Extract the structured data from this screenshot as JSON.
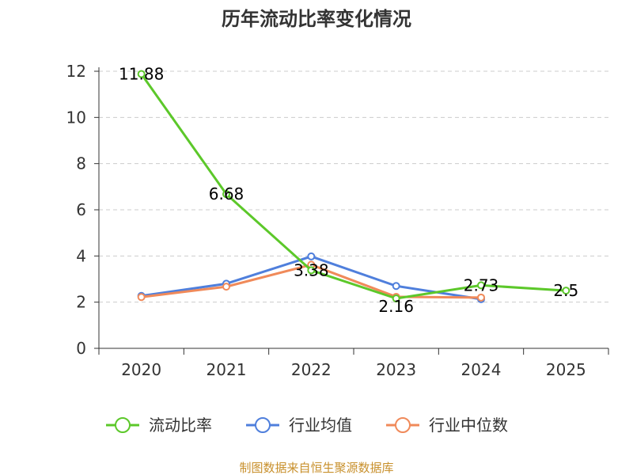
{
  "chart_data": {
    "type": "line",
    "title": "历年流动比率变化情况",
    "categories": [
      "2020",
      "2021",
      "2022",
      "2023",
      "2024",
      "2025"
    ],
    "ylim": [
      0,
      12
    ],
    "yticks": [
      "0",
      "2",
      "4",
      "6",
      "8",
      "10",
      "12"
    ],
    "grid": true,
    "legend_position": "bottom",
    "series": [
      {
        "name": "流动比率",
        "color": "#5cc82a",
        "values": [
          11.88,
          6.68,
          3.38,
          2.16,
          2.73,
          2.5
        ],
        "labels": [
          "11.88",
          "6.68",
          "3.38",
          "2.16",
          "2.73",
          "2.5"
        ]
      },
      {
        "name": "行业均值",
        "color": "#4f7fdc",
        "values": [
          2.27,
          2.8,
          3.98,
          2.7,
          2.13,
          null
        ]
      },
      {
        "name": "行业中位数",
        "color": "#f08a5a",
        "values": [
          2.22,
          2.67,
          3.62,
          2.23,
          2.2,
          null
        ]
      }
    ]
  },
  "source_text": "制图数据来自恒生聚源数据库",
  "source_color": "#c8902c"
}
